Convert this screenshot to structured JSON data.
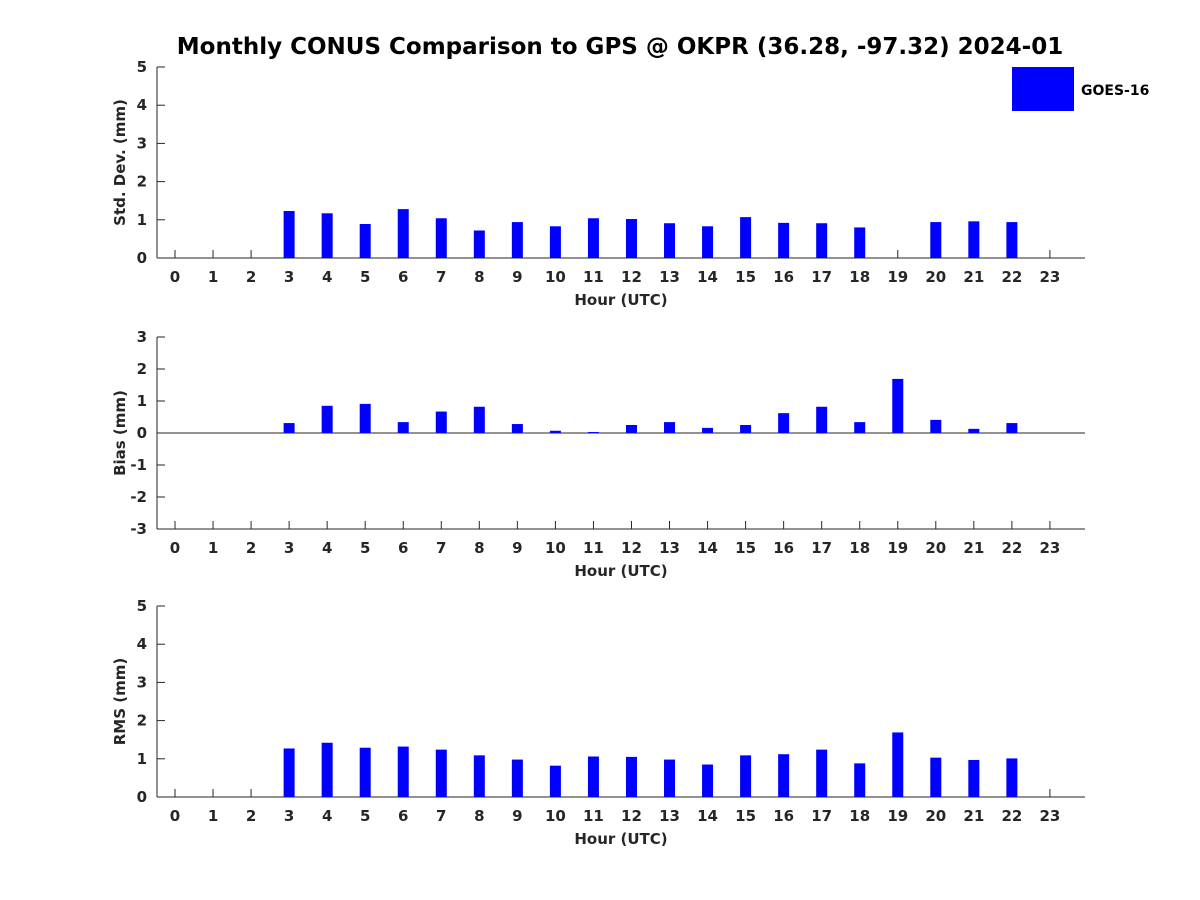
{
  "title": "Monthly CONUS Comparison to GPS @ OKPR (36.28, -97.32) 2024-01",
  "legend": {
    "label": "GOES-16",
    "color": "#0000ff"
  },
  "chart_data": [
    {
      "type": "bar",
      "series_name": "GOES-16",
      "xlabel": "Hour (UTC)",
      "ylabel": "Std. Dev. (mm)",
      "categories": [
        "0",
        "1",
        "2",
        "3",
        "4",
        "5",
        "6",
        "7",
        "8",
        "9",
        "10",
        "11",
        "12",
        "13",
        "14",
        "15",
        "16",
        "17",
        "18",
        "19",
        "20",
        "21",
        "22",
        "23"
      ],
      "values": [
        null,
        null,
        null,
        1.23,
        1.17,
        0.89,
        1.28,
        1.04,
        0.72,
        0.94,
        0.83,
        1.04,
        1.02,
        0.91,
        0.83,
        1.07,
        0.92,
        0.91,
        0.8,
        null,
        0.94,
        0.96,
        0.94,
        null
      ],
      "ylim": [
        0,
        5
      ],
      "yticks": [
        "0",
        "1",
        "2",
        "3",
        "4",
        "5"
      ]
    },
    {
      "type": "bar",
      "series_name": "GOES-16",
      "xlabel": "Hour (UTC)",
      "ylabel": "Bias (mm)",
      "categories": [
        "0",
        "1",
        "2",
        "3",
        "4",
        "5",
        "6",
        "7",
        "8",
        "9",
        "10",
        "11",
        "12",
        "13",
        "14",
        "15",
        "16",
        "17",
        "18",
        "19",
        "20",
        "21",
        "22",
        "23"
      ],
      "values": [
        null,
        null,
        null,
        0.31,
        0.85,
        0.91,
        0.34,
        0.67,
        0.82,
        0.28,
        0.07,
        0.03,
        0.25,
        0.34,
        0.16,
        0.25,
        0.62,
        0.82,
        0.34,
        1.69,
        0.41,
        0.13,
        0.31,
        null
      ],
      "ylim": [
        -3,
        3
      ],
      "yticks": [
        "-3",
        "-2",
        "-1",
        "0",
        "1",
        "2",
        "3"
      ]
    },
    {
      "type": "bar",
      "series_name": "GOES-16",
      "xlabel": "Hour (UTC)",
      "ylabel": "RMS (mm)",
      "categories": [
        "0",
        "1",
        "2",
        "3",
        "4",
        "5",
        "6",
        "7",
        "8",
        "9",
        "10",
        "11",
        "12",
        "13",
        "14",
        "15",
        "16",
        "17",
        "18",
        "19",
        "20",
        "21",
        "22",
        "23"
      ],
      "values": [
        null,
        null,
        null,
        1.27,
        1.42,
        1.29,
        1.32,
        1.24,
        1.09,
        0.98,
        0.82,
        1.06,
        1.05,
        0.98,
        0.85,
        1.09,
        1.12,
        1.24,
        0.88,
        1.69,
        1.03,
        0.97,
        1.01,
        null
      ],
      "ylim": [
        0,
        5
      ],
      "yticks": [
        "0",
        "1",
        "2",
        "3",
        "4",
        "5"
      ]
    }
  ]
}
